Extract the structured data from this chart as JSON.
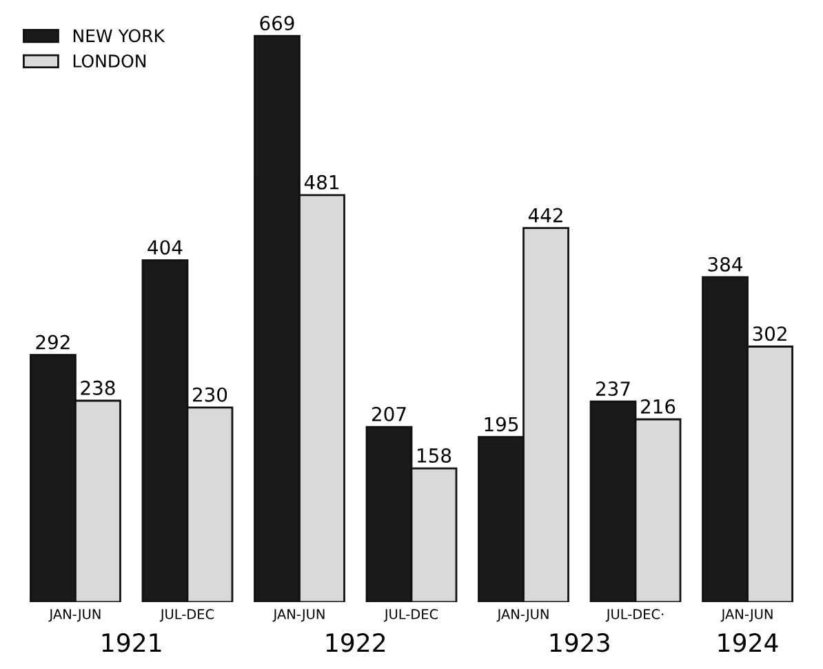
{
  "chart_data": {
    "type": "bar",
    "categories": [
      "JAN-JUN",
      "JUL-DEC",
      "JAN-JUN",
      "JUL-DEC",
      "JAN-JUN",
      "JUL-DEC·",
      "JAN-JUN"
    ],
    "series": [
      {
        "name": "NEW YORK",
        "color": "#1a1a1a",
        "values": [
          292,
          404,
          669,
          207,
          195,
          237,
          384
        ]
      },
      {
        "name": "LONDON",
        "color": "#d9d9d9",
        "values": [
          238,
          230,
          481,
          158,
          442,
          216,
          302
        ]
      }
    ],
    "annotations": [
      "1921",
      "1922",
      "1923",
      "1924"
    ],
    "data_labels": true,
    "legend": "top left",
    "grid": false
  }
}
